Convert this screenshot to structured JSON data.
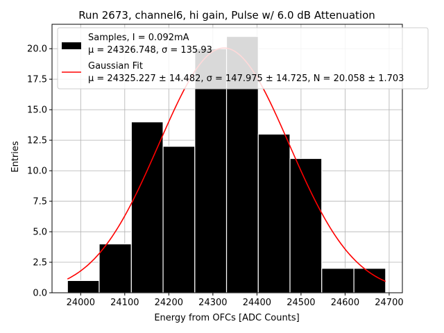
{
  "chart_data": {
    "type": "bar",
    "title": "Run 2673, channel6, hi gain, Pulse w/ 6.0 dB Attenuation",
    "xlabel": "Energy from OFCs [ADC Counts]",
    "ylabel": "Entries",
    "xlim": [
      23935,
      24730
    ],
    "ylim": [
      0,
      22
    ],
    "xticks": [
      24000,
      24100,
      24200,
      24300,
      24400,
      24500,
      24600,
      24700
    ],
    "yticks": [
      0.0,
      2.5,
      5.0,
      7.5,
      10.0,
      12.5,
      15.0,
      17.5,
      20.0
    ],
    "ytick_labels": [
      "0.0",
      "2.5",
      "5.0",
      "7.5",
      "10.0",
      "12.5",
      "15.0",
      "17.5",
      "20.0"
    ],
    "grid": true,
    "legend_position": "top-right",
    "bins": [
      {
        "left": 23970,
        "right": 24042,
        "count": 1
      },
      {
        "left": 24042,
        "right": 24115,
        "count": 4
      },
      {
        "left": 24115,
        "right": 24187,
        "count": 14
      },
      {
        "left": 24187,
        "right": 24259,
        "count": 12
      },
      {
        "left": 24259,
        "right": 24331,
        "count": 20
      },
      {
        "left": 24331,
        "right": 24403,
        "count": 21
      },
      {
        "left": 24403,
        "right": 24475,
        "count": 13
      },
      {
        "left": 24475,
        "right": 24547,
        "count": 11
      },
      {
        "left": 24547,
        "right": 24620,
        "count": 2
      },
      {
        "left": 24620,
        "right": 24692,
        "count": 2
      }
    ],
    "series": [
      {
        "name": "Samples",
        "type": "histogram",
        "color": "#000000",
        "edge_color": "#ffffff"
      },
      {
        "name": "Gaussian Fit",
        "type": "line",
        "color": "#ff0000",
        "mu": 24325.227,
        "sigma": 147.975,
        "N": 20.058,
        "x_range": [
          23970,
          24692
        ]
      }
    ],
    "legend": [
      {
        "line1": "Samples, I = 0.092mA",
        "line2": "μ = 24326.748, σ = 135.93"
      },
      {
        "line1": "Gaussian Fit",
        "line2": "μ = 24325.227 ± 14.482, σ = 147.975 ± 14.725, N = 20.058 ± 1.703"
      }
    ]
  }
}
